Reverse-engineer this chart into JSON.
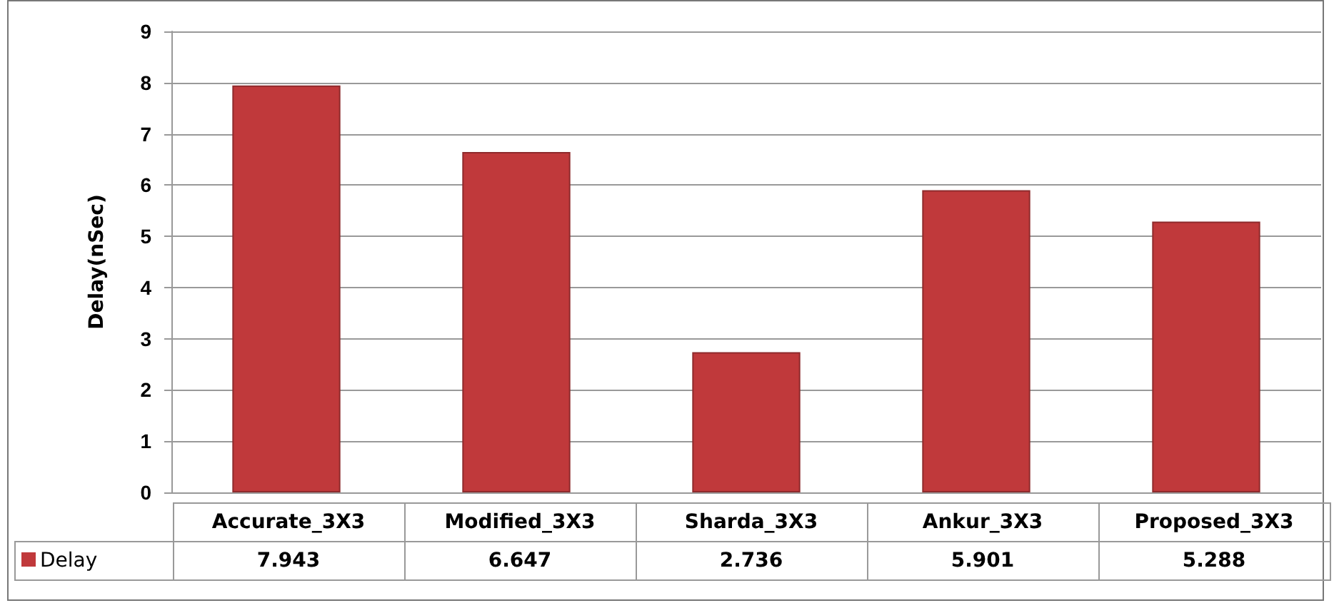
{
  "chart_data": {
    "type": "bar",
    "ylabel": "Delay(nSec)",
    "categories": [
      "Accurate_3X3",
      "Modified_3X3",
      "Sharda_3X3",
      "Ankur_3X3",
      "Proposed_3X3"
    ],
    "series": [
      {
        "name": "Delay",
        "color": "#c0393b",
        "values": [
          7.943,
          6.647,
          2.736,
          5.901,
          5.288
        ]
      }
    ],
    "ylim": [
      0,
      9
    ],
    "yticks": [
      0,
      1,
      2,
      3,
      4,
      5,
      6,
      7,
      8,
      9
    ],
    "grid": "y",
    "legend": "bottom left",
    "data_labels": true
  }
}
